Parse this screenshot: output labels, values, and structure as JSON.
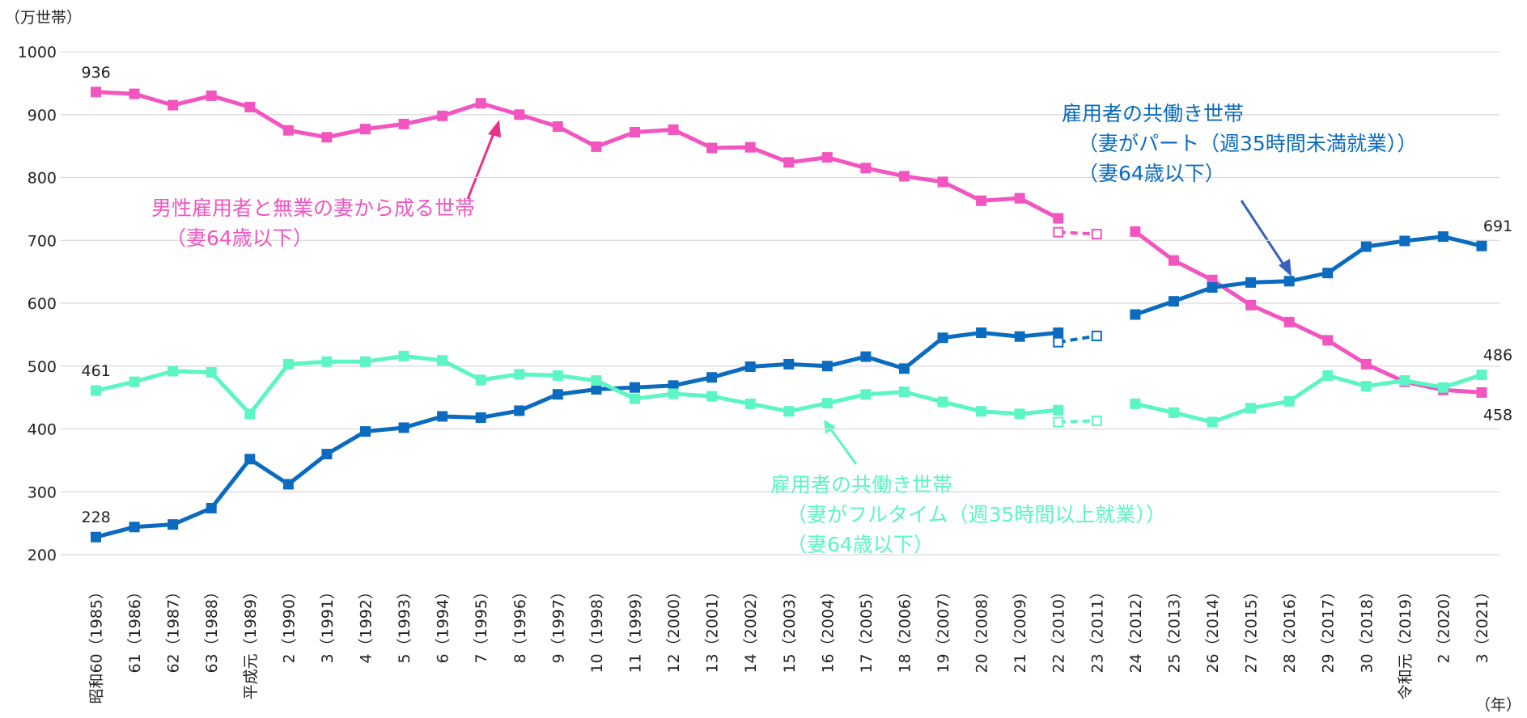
{
  "chart_data": {
    "type": "line",
    "y_label": "（万世帯）",
    "x_label": "（年）",
    "categories": [
      "昭和60（1985）",
      "61（1986）",
      "62（1987）",
      "63（1988）",
      "平成元（1989）",
      "2（1990）",
      "3（1991）",
      "4（1992）",
      "5（1993）",
      "6（1994）",
      "7（1995）",
      "8（1996）",
      "9（1997）",
      "10（1998）",
      "11（1999）",
      "12（2000）",
      "13（2001）",
      "14（2002）",
      "15（2003）",
      "16（2004）",
      "17（2005）",
      "18（2006）",
      "19（2007）",
      "20（2008）",
      "21（2009）",
      "22（2010）",
      "23（2011）",
      "24（2012）",
      "25（2013）",
      "26（2014）",
      "27（2015）",
      "28（2016）",
      "29（2017）",
      "30（2018）",
      "令和元（2019）",
      "2（2020）",
      "3（2021）"
    ],
    "ylim": [
      200,
      1000
    ],
    "yticks": [
      200,
      300,
      400,
      500,
      600,
      700,
      800,
      900,
      1000
    ],
    "grid": true,
    "series": [
      {
        "name": [
          "男性雇用者と無業の妻から成る世帯",
          "（妻64歳以下）"
        ],
        "color": "#f255c0",
        "values": [
          936,
          933,
          915,
          930,
          912,
          875,
          864,
          877,
          885,
          898,
          918,
          900,
          881,
          849,
          872,
          876,
          847,
          848,
          824,
          832,
          815,
          802,
          793,
          763,
          767,
          735,
          null,
          714,
          668,
          637,
          597,
          570,
          541,
          503,
          475,
          462,
          458
        ]
      },
      {
        "name": [
          "雇用者の共働き世帯",
          "（妻がパート（週35時間未満就業））",
          "（妻64歳以下）"
        ],
        "color": "#0a6bbf",
        "values": [
          228,
          244,
          248,
          274,
          352,
          312,
          360,
          396,
          402,
          420,
          418,
          429,
          455,
          463,
          466,
          469,
          482,
          499,
          503,
          500,
          515,
          496,
          545,
          553,
          547,
          553,
          null,
          582,
          603,
          625,
          633,
          635,
          648,
          690,
          699,
          706,
          691
        ]
      },
      {
        "name": [
          "雇用者の共働き世帯",
          "（妻がフルタイム（週35時間以上就業））",
          "（妻64歳以下）"
        ],
        "color": "#5cf5c4",
        "values": [
          461,
          475,
          492,
          490,
          424,
          503,
          507,
          507,
          516,
          509,
          478,
          487,
          485,
          477,
          448,
          456,
          452,
          440,
          428,
          441,
          455,
          459,
          443,
          428,
          424,
          430,
          null,
          440,
          426,
          411,
          433,
          444,
          485,
          468,
          477,
          466,
          486
        ]
      },
      {
        "color": "#f255c0",
        "dashed": true,
        "values": [
          null,
          null,
          null,
          null,
          null,
          null,
          null,
          null,
          null,
          null,
          null,
          null,
          null,
          null,
          null,
          null,
          null,
          null,
          null,
          null,
          null,
          null,
          null,
          null,
          null,
          713,
          710,
          null,
          null,
          null,
          null,
          null,
          null,
          null,
          null,
          null,
          null
        ]
      },
      {
        "color": "#0a6bbf",
        "dashed": true,
        "values": [
          null,
          null,
          null,
          null,
          null,
          null,
          null,
          null,
          null,
          null,
          null,
          null,
          null,
          null,
          null,
          null,
          null,
          null,
          null,
          null,
          null,
          null,
          null,
          null,
          null,
          538,
          548,
          null,
          null,
          null,
          null,
          null,
          null,
          null,
          null,
          null,
          null
        ]
      },
      {
        "color": "#5cf5c4",
        "dashed": true,
        "values": [
          null,
          null,
          null,
          null,
          null,
          null,
          null,
          null,
          null,
          null,
          null,
          null,
          null,
          null,
          null,
          null,
          null,
          null,
          null,
          null,
          null,
          null,
          null,
          null,
          null,
          411,
          413,
          null,
          null,
          null,
          null,
          null,
          null,
          null,
          null,
          null,
          null
        ]
      }
    ]
  }
}
